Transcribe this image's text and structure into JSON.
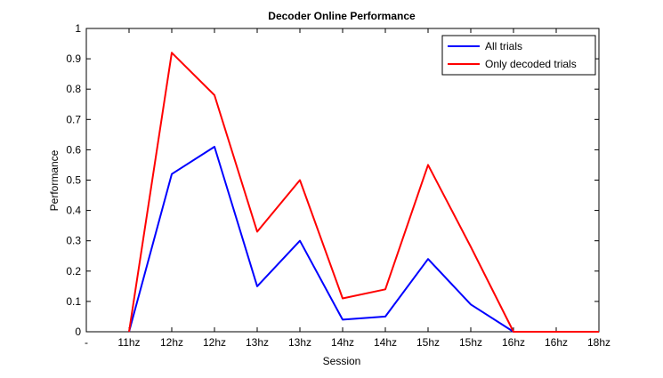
{
  "chart_data": {
    "type": "line",
    "title": "Decoder Online Performance",
    "xlabel": "Session",
    "ylabel": "Performance",
    "categories": [
      "-",
      "11hz",
      "12hz",
      "12hz",
      "13hz",
      "13hz",
      "14hz",
      "14hz",
      "15hz",
      "15hz",
      "16hz",
      "16hz",
      "18hz"
    ],
    "yticks": [
      "0",
      "0.1",
      "0.2",
      "0.3",
      "0.4",
      "0.5",
      "0.6",
      "0.7",
      "0.8",
      "0.9",
      "1"
    ],
    "ylim": [
      0,
      1
    ],
    "xlim": [
      0,
      12
    ],
    "grid": false,
    "legend_position": "top-right",
    "series": [
      {
        "name": "All trials",
        "color": "#0000ff",
        "x": [
          1,
          2,
          3,
          4,
          5,
          6,
          7,
          8,
          9,
          10,
          11,
          12
        ],
        "values": [
          0,
          0.52,
          0.61,
          0.15,
          0.3,
          0.04,
          0.05,
          0.24,
          0.09,
          0,
          0,
          0
        ]
      },
      {
        "name": "Only decoded trials",
        "color": "#ff0000",
        "x": [
          1,
          2,
          3,
          4,
          5,
          6,
          7,
          8,
          9,
          10,
          11,
          12
        ],
        "values": [
          0,
          0.92,
          0.78,
          0.33,
          0.5,
          0.11,
          0.14,
          0.55,
          0.28,
          0,
          0,
          0
        ]
      }
    ]
  }
}
